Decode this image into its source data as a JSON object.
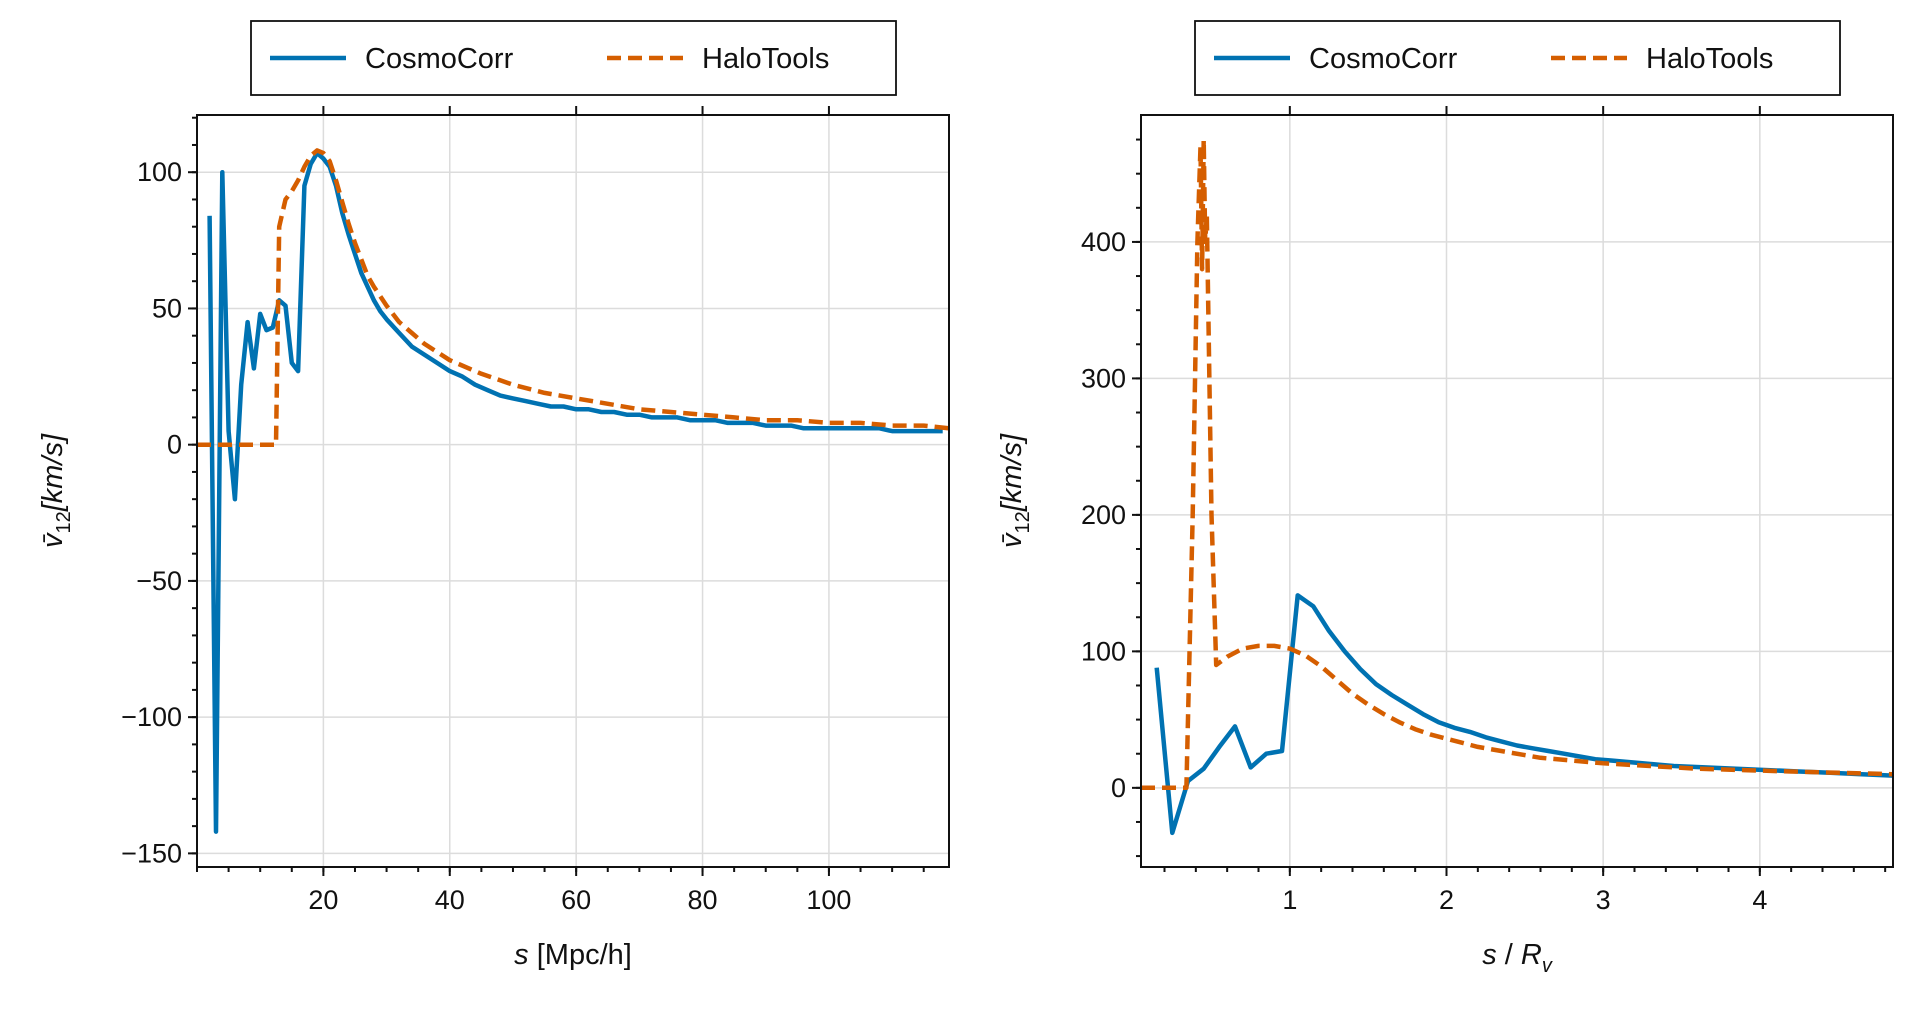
{
  "colors": {
    "cosmocorr": "#0072b2",
    "halotools": "#d55e00"
  },
  "chart_data": [
    {
      "type": "line",
      "legend_position": "top-center (above axes)",
      "grid": true,
      "legend": [
        "CosmoCorr",
        "HaloTools"
      ],
      "xlabel": {
        "italic": "s",
        "normal": " [Mpc/h]"
      },
      "ylabel": {
        "base": "v̄",
        "sub": "12",
        "rest": "[km/s]"
      },
      "xlim": [
        0,
        119
      ],
      "ylim": [
        -155,
        121
      ],
      "xticks": [
        20,
        40,
        60,
        80,
        100
      ],
      "xtick_labels": [
        "20",
        "40",
        "60",
        "80",
        "100"
      ],
      "yticks": [
        -150,
        -100,
        -50,
        0,
        50,
        100
      ],
      "ytick_labels": [
        "−150",
        "−100",
        "−50",
        "0",
        "50",
        "100"
      ],
      "series": [
        {
          "name": "CosmoCorr",
          "style": "solid",
          "x": [
            2.0,
            3.0,
            4.0,
            5.0,
            6.0,
            7.0,
            8.0,
            9.0,
            10.0,
            11.0,
            12.0,
            13.0,
            14.0,
            15.0,
            16.0,
            17.0,
            18.0,
            19.0,
            20.0,
            21.0,
            22.0,
            23.0,
            24.0,
            25.0,
            26.0,
            27.0,
            28.0,
            29.0,
            30.0,
            32.0,
            34.0,
            36.0,
            38.0,
            40.0,
            42.0,
            44.0,
            46.0,
            48.0,
            50.0,
            52.0,
            54.0,
            56.0,
            58.0,
            60.0,
            62.0,
            64.0,
            66.0,
            68.0,
            70.0,
            72.0,
            74.0,
            76.0,
            78.0,
            80.0,
            82.0,
            84.0,
            86.0,
            88.0,
            90.0,
            92.0,
            94.0,
            96.0,
            98.0,
            100.0,
            102.0,
            104.0,
            106.0,
            108.0,
            110.0,
            112.0,
            114.0,
            116.0,
            118.0
          ],
          "y": [
            84,
            -142,
            100,
            5,
            -20,
            22,
            45,
            28,
            48,
            42,
            43,
            53,
            51,
            30,
            27,
            95,
            103,
            107,
            105,
            102,
            95,
            85,
            77,
            70,
            63,
            58,
            53,
            49,
            46,
            41,
            36,
            33,
            30,
            27,
            25,
            22,
            20,
            18,
            17,
            16,
            15,
            14,
            14,
            13,
            13,
            12,
            12,
            11,
            11,
            10,
            10,
            10,
            9,
            9,
            9,
            8,
            8,
            8,
            7,
            7,
            7,
            6,
            6,
            6,
            6,
            6,
            6,
            6,
            5,
            5,
            5,
            5,
            5
          ]
        },
        {
          "name": "HaloTools",
          "style": "dashed",
          "x": [
            0.0,
            12.0,
            12.5,
            13.0,
            14.0,
            15.0,
            16.0,
            17.0,
            18.0,
            19.0,
            20.0,
            21.0,
            22.0,
            23.0,
            24.0,
            25.0,
            26.0,
            27.0,
            28.0,
            30.0,
            32.0,
            34.0,
            36.0,
            38.0,
            40.0,
            45.0,
            50.0,
            55.0,
            60.0,
            65.0,
            70.0,
            75.0,
            80.0,
            85.0,
            90.0,
            95.0,
            100.0,
            105.0,
            110.0,
            115.0,
            119.0
          ],
          "y": [
            0,
            0,
            0,
            80,
            90,
            93,
            97,
            102,
            106,
            108,
            107,
            104,
            97,
            89,
            81,
            74,
            68,
            62,
            58,
            51,
            45,
            41,
            37,
            34,
            31,
            26,
            22,
            19,
            17,
            15,
            13,
            12,
            11,
            10,
            9,
            9,
            8,
            8,
            7,
            7,
            6
          ]
        }
      ]
    },
    {
      "type": "line",
      "legend_position": "top-center (above axes)",
      "grid": true,
      "legend": [
        "CosmoCorr",
        "HaloTools"
      ],
      "xlabel": {
        "italic": "s",
        "normal": " / ",
        "italic2": "R",
        "sub": "v"
      },
      "ylabel": {
        "base": "v̄",
        "sub": "12",
        "rest": "[km/s]"
      },
      "xlim": [
        0.05,
        4.85
      ],
      "ylim": [
        -58,
        493
      ],
      "xticks": [
        1,
        2,
        3,
        4
      ],
      "xtick_labels": [
        "1",
        "2",
        "3",
        "4"
      ],
      "yticks": [
        0,
        100,
        200,
        300,
        400
      ],
      "ytick_labels": [
        "0",
        "100",
        "200",
        "300",
        "400"
      ],
      "series": [
        {
          "name": "CosmoCorr",
          "style": "solid",
          "x": [
            0.15,
            0.25,
            0.35,
            0.45,
            0.55,
            0.65,
            0.75,
            0.85,
            0.95,
            1.05,
            1.15,
            1.25,
            1.35,
            1.45,
            1.55,
            1.65,
            1.75,
            1.85,
            1.95,
            2.05,
            2.15,
            2.25,
            2.35,
            2.45,
            2.55,
            2.65,
            2.75,
            2.85,
            2.95,
            3.05,
            3.25,
            3.45,
            3.65,
            3.85,
            4.05,
            4.25,
            4.45,
            4.65,
            4.85
          ],
          "y": [
            88,
            -33,
            5,
            14,
            30,
            45,
            15,
            25,
            27,
            141,
            133,
            115,
            100,
            87,
            76,
            68,
            61,
            54,
            48,
            44,
            41,
            37,
            34,
            31,
            29,
            27,
            25,
            23,
            21,
            20,
            18,
            16,
            15,
            14,
            13,
            12,
            11,
            10,
            9
          ]
        },
        {
          "name": "HaloTools",
          "style": "dashed",
          "x": [
            0.05,
            0.3,
            0.34,
            0.38,
            0.41,
            0.43,
            0.44,
            0.45,
            0.46,
            0.47,
            0.5,
            0.53,
            0.6,
            0.7,
            0.8,
            0.9,
            1.0,
            1.1,
            1.2,
            1.3,
            1.4,
            1.5,
            1.6,
            1.7,
            1.8,
            1.9,
            2.0,
            2.2,
            2.4,
            2.6,
            2.8,
            3.0,
            3.3,
            3.6,
            3.9,
            4.2,
            4.5,
            4.85
          ],
          "y": [
            0,
            0,
            0,
            200,
            400,
            470,
            380,
            475,
            400,
            420,
            200,
            90,
            96,
            102,
            104,
            104,
            102,
            97,
            89,
            79,
            69,
            61,
            54,
            48,
            43,
            39,
            36,
            30,
            26,
            22,
            20,
            18,
            16,
            14,
            13,
            12,
            11,
            10
          ]
        }
      ]
    }
  ]
}
